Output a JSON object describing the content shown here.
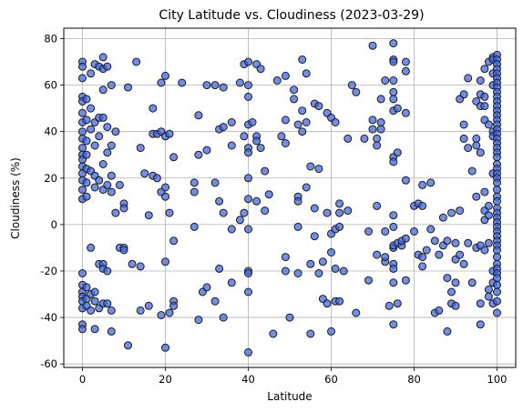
{
  "chart_data": {
    "type": "scatter",
    "title": "City Latitude vs. Cloudiness (2023-03-29)",
    "xlabel": "Latitude",
    "ylabel": "Cloudiness (%)",
    "xlim": [
      -4.5,
      104.5
    ],
    "ylim": [
      -61.5,
      84.5
    ],
    "xticks": [
      0,
      20,
      40,
      60,
      80,
      100
    ],
    "yticks": [
      -60,
      -40,
      -20,
      0,
      20,
      40,
      60,
      80
    ],
    "grid": true,
    "marker_color": "#4169e1",
    "marker_edge_color": "#1a1a1a",
    "marker_opacity": 0.75,
    "points": [
      [
        0,
        70
      ],
      [
        0,
        68
      ],
      [
        0,
        63
      ],
      [
        0,
        55
      ],
      [
        0,
        53
      ],
      [
        0,
        48
      ],
      [
        0,
        44
      ],
      [
        0,
        40
      ],
      [
        0,
        37
      ],
      [
        0,
        33
      ],
      [
        0,
        30
      ],
      [
        0,
        28
      ],
      [
        0,
        25
      ],
      [
        0,
        22
      ],
      [
        0,
        19
      ],
      [
        0,
        15
      ],
      [
        0,
        11
      ],
      [
        0,
        -21
      ],
      [
        0,
        -26
      ],
      [
        0,
        -29
      ],
      [
        0,
        -31
      ],
      [
        0,
        -33
      ],
      [
        0,
        -36
      ],
      [
        0,
        -43
      ],
      [
        0,
        -45
      ],
      [
        1,
        54
      ],
      [
        1,
        45
      ],
      [
        1,
        36
      ],
      [
        1,
        30
      ],
      [
        1,
        24
      ],
      [
        1,
        18
      ],
      [
        1,
        12
      ],
      [
        1,
        -27
      ],
      [
        1,
        -32
      ],
      [
        1,
        -35
      ],
      [
        2,
        65
      ],
      [
        2,
        50
      ],
      [
        2,
        41
      ],
      [
        2,
        23
      ],
      [
        2,
        -10
      ],
      [
        2,
        -30
      ],
      [
        2,
        -37
      ],
      [
        3,
        69
      ],
      [
        3,
        44
      ],
      [
        3,
        34
      ],
      [
        3,
        21
      ],
      [
        3,
        16
      ],
      [
        3,
        -29
      ],
      [
        3,
        -33
      ],
      [
        3,
        -45
      ],
      [
        4,
        68
      ],
      [
        4,
        46
      ],
      [
        4,
        38
      ],
      [
        4,
        19
      ],
      [
        4,
        -17
      ],
      [
        4,
        -36
      ],
      [
        5,
        72
      ],
      [
        5,
        67
      ],
      [
        5,
        58
      ],
      [
        5,
        46
      ],
      [
        5,
        26
      ],
      [
        5,
        15
      ],
      [
        5,
        -17
      ],
      [
        5,
        -19
      ],
      [
        5,
        -34
      ],
      [
        6,
        68
      ],
      [
        6,
        42
      ],
      [
        6,
        31
      ],
      [
        6,
        17
      ],
      [
        6,
        -20
      ],
      [
        6,
        -34
      ],
      [
        7,
        60
      ],
      [
        7,
        34
      ],
      [
        7,
        21
      ],
      [
        7,
        14
      ],
      [
        7,
        -37
      ],
      [
        7,
        -46
      ],
      [
        8,
        40
      ],
      [
        8,
        5
      ],
      [
        9,
        17
      ],
      [
        9,
        -10
      ],
      [
        10,
        9
      ],
      [
        10,
        7
      ],
      [
        10,
        -10
      ],
      [
        10,
        -11
      ],
      [
        11,
        59
      ],
      [
        11,
        -52
      ],
      [
        12,
        -17
      ],
      [
        13,
        70
      ],
      [
        14,
        33
      ],
      [
        14,
        -18
      ],
      [
        14,
        -37
      ],
      [
        15,
        22
      ],
      [
        16,
        4
      ],
      [
        16,
        -35
      ],
      [
        17,
        50
      ],
      [
        17,
        39
      ],
      [
        17,
        21
      ],
      [
        18,
        39
      ],
      [
        18,
        20
      ],
      [
        19,
        61
      ],
      [
        19,
        40
      ],
      [
        19,
        14
      ],
      [
        19,
        -39
      ],
      [
        20,
        64
      ],
      [
        20,
        38
      ],
      [
        20,
        16
      ],
      [
        20,
        12
      ],
      [
        20,
        -16
      ],
      [
        20,
        -53
      ],
      [
        21,
        39
      ],
      [
        21,
        5
      ],
      [
        21,
        -38
      ],
      [
        22,
        29
      ],
      [
        22,
        -7
      ],
      [
        22,
        -33
      ],
      [
        22,
        -35
      ],
      [
        24,
        61
      ],
      [
        27,
        18
      ],
      [
        27,
        14
      ],
      [
        27,
        -1
      ],
      [
        28,
        47
      ],
      [
        28,
        30
      ],
      [
        28,
        -41
      ],
      [
        29,
        -29
      ],
      [
        30,
        60
      ],
      [
        30,
        32
      ],
      [
        30,
        -27
      ],
      [
        32,
        60
      ],
      [
        32,
        18
      ],
      [
        32,
        -33
      ],
      [
        33,
        41
      ],
      [
        33,
        10
      ],
      [
        33,
        -19
      ],
      [
        34,
        59
      ],
      [
        34,
        42
      ],
      [
        34,
        5
      ],
      [
        34,
        -40
      ],
      [
        36,
        44
      ],
      [
        36,
        34
      ],
      [
        36,
        -2
      ],
      [
        36,
        -25
      ],
      [
        38,
        61
      ],
      [
        38,
        2
      ],
      [
        39,
        69
      ],
      [
        39,
        38
      ],
      [
        39,
        5
      ],
      [
        40,
        70
      ],
      [
        40,
        60
      ],
      [
        40,
        55
      ],
      [
        40,
        43
      ],
      [
        40,
        33
      ],
      [
        40,
        31
      ],
      [
        40,
        20
      ],
      [
        40,
        11
      ],
      [
        40,
        -2
      ],
      [
        40,
        -20
      ],
      [
        40,
        -21
      ],
      [
        40,
        -29
      ],
      [
        40,
        -55
      ],
      [
        41,
        44
      ],
      [
        42,
        69
      ],
      [
        42,
        38
      ],
      [
        42,
        36
      ],
      [
        42,
        10
      ],
      [
        43,
        67
      ],
      [
        43,
        33
      ],
      [
        44,
        23
      ],
      [
        44,
        6
      ],
      [
        45,
        13
      ],
      [
        46,
        -47
      ],
      [
        47,
        62
      ],
      [
        48,
        38
      ],
      [
        49,
        45
      ],
      [
        49,
        35
      ],
      [
        49,
        64
      ],
      [
        49,
        -14
      ],
      [
        49,
        -20
      ],
      [
        50,
        -40
      ],
      [
        51,
        54
      ],
      [
        51,
        58
      ],
      [
        52,
        12
      ],
      [
        52,
        10
      ],
      [
        52,
        43
      ],
      [
        52,
        -1
      ],
      [
        52,
        -21
      ],
      [
        53,
        71
      ],
      [
        53,
        49
      ],
      [
        53,
        40
      ],
      [
        54,
        65
      ],
      [
        54,
        44
      ],
      [
        54,
        16
      ],
      [
        55,
        25
      ],
      [
        55,
        -17
      ],
      [
        55,
        -47
      ],
      [
        56,
        52
      ],
      [
        56,
        7
      ],
      [
        56,
        -5
      ],
      [
        57,
        51
      ],
      [
        57,
        24
      ],
      [
        57,
        -21
      ],
      [
        58,
        -16
      ],
      [
        58,
        -32
      ],
      [
        59,
        48
      ],
      [
        59,
        5
      ],
      [
        59,
        -34
      ],
      [
        60,
        46
      ],
      [
        60,
        -4
      ],
      [
        60,
        -12
      ],
      [
        60,
        -46
      ],
      [
        61,
        44
      ],
      [
        61,
        -2
      ],
      [
        61,
        -19
      ],
      [
        61,
        -33
      ],
      [
        62,
        9
      ],
      [
        62,
        5
      ],
      [
        62,
        -1
      ],
      [
        62,
        -33
      ],
      [
        63,
        -20
      ],
      [
        64,
        37
      ],
      [
        64,
        6
      ],
      [
        65,
        60
      ],
      [
        66,
        -38
      ],
      [
        66,
        57
      ],
      [
        68,
        37
      ],
      [
        69,
        -24
      ],
      [
        69,
        -3
      ],
      [
        70,
        77
      ],
      [
        70,
        45
      ],
      [
        70,
        41
      ],
      [
        71,
        37
      ],
      [
        71,
        34
      ],
      [
        71,
        8
      ],
      [
        71,
        -13
      ],
      [
        72,
        54
      ],
      [
        72,
        44
      ],
      [
        72,
        41
      ],
      [
        73,
        62
      ],
      [
        73,
        -16
      ],
      [
        73,
        -14
      ],
      [
        73,
        -3
      ],
      [
        74,
        -35
      ],
      [
        75,
        78
      ],
      [
        75,
        71
      ],
      [
        75,
        70
      ],
      [
        75,
        62
      ],
      [
        75,
        57
      ],
      [
        75,
        54
      ],
      [
        75,
        49
      ],
      [
        75,
        29
      ],
      [
        75,
        27
      ],
      [
        75,
        4
      ],
      [
        75,
        -1
      ],
      [
        75,
        -10
      ],
      [
        75,
        -9
      ],
      [
        75,
        -17
      ],
      [
        75,
        -19
      ],
      [
        75,
        -25
      ],
      [
        75,
        -43
      ],
      [
        76,
        50
      ],
      [
        76,
        31
      ],
      [
        76,
        -34
      ],
      [
        76,
        -8
      ],
      [
        77,
        -9
      ],
      [
        77,
        -7
      ],
      [
        78,
        70
      ],
      [
        78,
        66
      ],
      [
        78,
        48
      ],
      [
        78,
        19
      ],
      [
        78,
        -24
      ],
      [
        78,
        -6
      ],
      [
        80,
        8
      ],
      [
        80,
        -3
      ],
      [
        81,
        9
      ],
      [
        81,
        -13
      ],
      [
        82,
        -18
      ],
      [
        82,
        -14
      ],
      [
        82,
        8
      ],
      [
        82,
        17
      ],
      [
        83,
        -11
      ],
      [
        84,
        18
      ],
      [
        84,
        -2
      ],
      [
        85,
        -38
      ],
      [
        85,
        -7
      ],
      [
        86,
        -13
      ],
      [
        86,
        -37
      ],
      [
        87,
        -9
      ],
      [
        87,
        3
      ],
      [
        88,
        -23
      ],
      [
        88,
        -46
      ],
      [
        88,
        -7
      ],
      [
        89,
        -29
      ],
      [
        89,
        -34
      ],
      [
        89,
        5
      ],
      [
        90,
        -25
      ],
      [
        90,
        -35
      ],
      [
        90,
        -8
      ],
      [
        90,
        -15
      ],
      [
        91,
        54
      ],
      [
        91,
        6
      ],
      [
        91,
        -13
      ],
      [
        92,
        56
      ],
      [
        92,
        43
      ],
      [
        92,
        37
      ],
      [
        92,
        -17
      ],
      [
        93,
        63
      ],
      [
        93,
        33
      ],
      [
        93,
        -8
      ],
      [
        94,
        23
      ],
      [
        94,
        -25
      ],
      [
        95,
        53
      ],
      [
        95,
        37
      ],
      [
        95,
        34
      ],
      [
        95,
        12
      ],
      [
        95,
        -10
      ],
      [
        96,
        31
      ],
      [
        96,
        62
      ],
      [
        96,
        56
      ],
      [
        96,
        51
      ],
      [
        96,
        -9
      ],
      [
        96,
        -34
      ],
      [
        96,
        -43
      ],
      [
        97,
        67
      ],
      [
        97,
        55
      ],
      [
        97,
        51
      ],
      [
        97,
        45
      ],
      [
        97,
        -11
      ],
      [
        97,
        14
      ],
      [
        97,
        6
      ],
      [
        97,
        2
      ],
      [
        98,
        70
      ],
      [
        98,
        43
      ],
      [
        98,
        -8
      ],
      [
        98,
        -31
      ],
      [
        98,
        -28
      ],
      [
        98,
        8
      ],
      [
        98,
        4
      ],
      [
        99,
        72
      ],
      [
        99,
        71
      ],
      [
        99,
        65
      ],
      [
        99,
        60
      ],
      [
        99,
        40
      ],
      [
        99,
        38
      ],
      [
        99,
        22
      ],
      [
        99,
        -34
      ],
      [
        99,
        -20
      ],
      [
        99,
        -25
      ],
      [
        100,
        73
      ],
      [
        100,
        71
      ],
      [
        100,
        69
      ],
      [
        100,
        67
      ],
      [
        100,
        65
      ],
      [
        100,
        63
      ],
      [
        100,
        61
      ],
      [
        100,
        59
      ],
      [
        100,
        57
      ],
      [
        100,
        55
      ],
      [
        100,
        53
      ],
      [
        100,
        51
      ],
      [
        100,
        49
      ],
      [
        100,
        47
      ],
      [
        100,
        45
      ],
      [
        100,
        43
      ],
      [
        100,
        41
      ],
      [
        100,
        39
      ],
      [
        100,
        37
      ],
      [
        100,
        35
      ],
      [
        100,
        33
      ],
      [
        100,
        31
      ],
      [
        100,
        29
      ],
      [
        100,
        26
      ],
      [
        100,
        24
      ],
      [
        100,
        22
      ],
      [
        100,
        20
      ],
      [
        100,
        18
      ],
      [
        100,
        15
      ],
      [
        100,
        12
      ],
      [
        100,
        10
      ],
      [
        100,
        7
      ],
      [
        100,
        5
      ],
      [
        100,
        3
      ],
      [
        100,
        1
      ],
      [
        100,
        -1
      ],
      [
        100,
        -3
      ],
      [
        100,
        -5
      ],
      [
        100,
        -7
      ],
      [
        100,
        -9
      ],
      [
        100,
        -11
      ],
      [
        100,
        -14
      ],
      [
        100,
        -17
      ],
      [
        100,
        -19
      ],
      [
        100,
        -21
      ],
      [
        100,
        -23
      ],
      [
        100,
        -26
      ],
      [
        100,
        -29
      ],
      [
        100,
        -33
      ],
      [
        100,
        -38
      ]
    ]
  }
}
